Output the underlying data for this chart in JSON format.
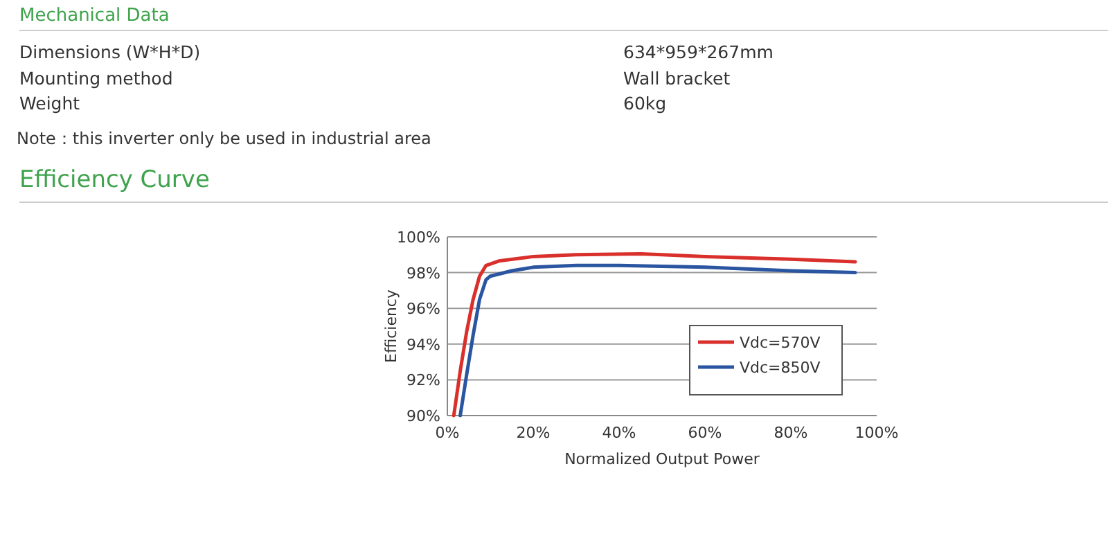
{
  "chart_data": {
    "type": "line",
    "title": "Efficiency Curve",
    "xlabel": "Normalized Output Power",
    "ylabel": "Efficiency",
    "annotations": [
      "Mechanical Data",
      "Dimensions (W*H*D)",
      "634*959*267mm",
      "Mounting method",
      "Wall bracket",
      "Weight",
      "60kg",
      "Note：this inverter only be used in industrial area"
    ],
    "series": [
      {
        "name": "Vdc=570V",
        "color": "#d9302c",
        "x": [
          1.5,
          3,
          4.5,
          6,
          7.5,
          9,
          12,
          20,
          30,
          45,
          50,
          60,
          80,
          95
        ],
        "values": [
          90,
          92.5,
          94.7,
          96.5,
          97.8,
          98.4,
          98.65,
          98.9,
          99.0,
          99.05,
          99.0,
          98.9,
          98.75,
          98.6
        ]
      },
      {
        "name": "Vdc=850V",
        "color": "#2a55a0",
        "x": [
          3,
          4.5,
          6,
          7.5,
          9,
          10,
          15,
          20,
          30,
          40,
          50,
          60,
          80,
          95
        ],
        "values": [
          90,
          92.3,
          94.5,
          96.5,
          97.6,
          97.8,
          98.1,
          98.3,
          98.4,
          98.4,
          98.35,
          98.3,
          98.1,
          98.0
        ]
      }
    ],
    "xlim": [
      0,
      100
    ],
    "xticks": [
      {
        "value": 0,
        "label": "0%"
      },
      {
        "value": 20,
        "label": "20%"
      },
      {
        "value": 40,
        "label": "40%"
      },
      {
        "value": 60,
        "label": "60%"
      },
      {
        "value": 80,
        "label": "80%"
      },
      {
        "value": 100,
        "label": "100%"
      }
    ],
    "ylim": [
      90,
      100
    ],
    "yticks": [
      {
        "value": 90,
        "label": "90%"
      },
      {
        "value": 92,
        "label": "92%"
      },
      {
        "value": 94,
        "label": "94%"
      },
      {
        "value": 96,
        "label": "96%"
      },
      {
        "value": 98,
        "label": "98%"
      },
      {
        "value": 100,
        "label": "100%"
      }
    ],
    "grid": "y",
    "legend": "bottom right",
    "line_style": "solid",
    "marker": "none"
  }
}
